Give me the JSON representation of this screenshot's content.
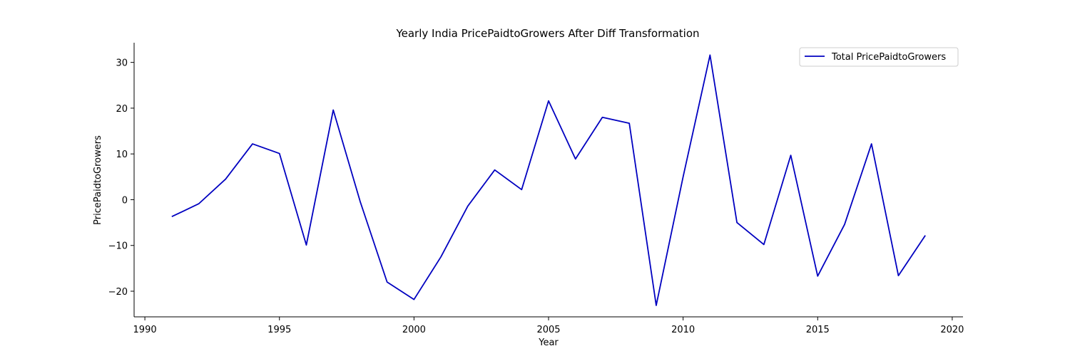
{
  "chart_data": {
    "type": "line",
    "title": "Yearly India PricePaidtoGrowers After Diff Transformation",
    "xlabel": "Year",
    "ylabel": "PricePaidtoGrowers",
    "xlim": [
      1989.6,
      2020.4
    ],
    "ylim": [
      -25.6,
      34.3
    ],
    "xticks": [
      1990,
      1995,
      2000,
      2005,
      2010,
      2015,
      2020
    ],
    "yticks": [
      -20,
      -10,
      0,
      10,
      20,
      30
    ],
    "grid": false,
    "legend_position": "top-right",
    "series": [
      {
        "name": "Total PricePaidtoGrowers",
        "color": "#0000c0",
        "x": [
          1991,
          1992,
          1993,
          1994,
          1995,
          1996,
          1997,
          1998,
          1999,
          2000,
          2001,
          2002,
          2003,
          2004,
          2005,
          2006,
          2007,
          2008,
          2009,
          2010,
          2011,
          2012,
          2013,
          2014,
          2015,
          2016,
          2017,
          2018,
          2019
        ],
        "values": [
          -3.7,
          -0.9,
          4.5,
          12.2,
          10.1,
          -9.9,
          19.6,
          -0.4,
          -18.0,
          -21.8,
          -12.5,
          -1.4,
          6.5,
          2.2,
          21.6,
          8.9,
          18.0,
          16.7,
          -23.1,
          5.0,
          31.6,
          -5.0,
          -9.8,
          9.7,
          -16.7,
          -5.4,
          12.2,
          -16.6,
          -7.8
        ]
      }
    ]
  }
}
